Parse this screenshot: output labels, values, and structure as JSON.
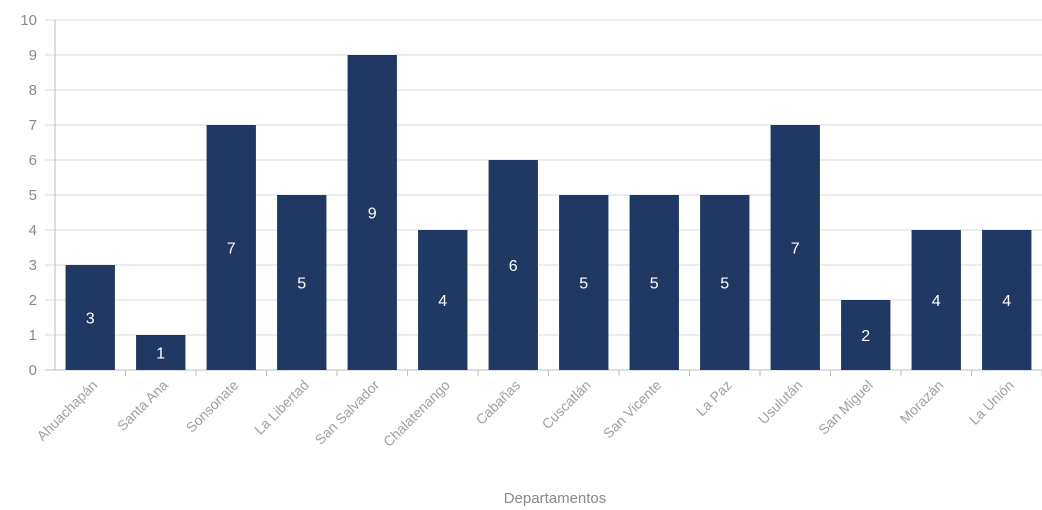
{
  "chart_data": {
    "type": "bar",
    "categories": [
      "Ahuachapán",
      "Santa Ana",
      "Sonsonate",
      "La Libertad",
      "San Salvador",
      "Chalatenango",
      "Cabañas",
      "Cuscatlán",
      "San Vicente",
      "La Paz",
      "Usulután",
      "San Miguel",
      "Morazán",
      "La Unión"
    ],
    "values": [
      3,
      1,
      7,
      5,
      9,
      4,
      6,
      5,
      5,
      5,
      7,
      2,
      4,
      4
    ],
    "xlabel": "Departamentos",
    "ylabel": "",
    "ylim": [
      0,
      10
    ],
    "yticks": [
      "0",
      "1",
      "2",
      "3",
      "4",
      "5",
      "6",
      "7",
      "8",
      "9",
      "10"
    ],
    "grid": true,
    "data_labels": true,
    "colors": {
      "bar": "#1f3864",
      "grid": "#d9d9d9",
      "axis_text": "#8a8a8a"
    }
  }
}
